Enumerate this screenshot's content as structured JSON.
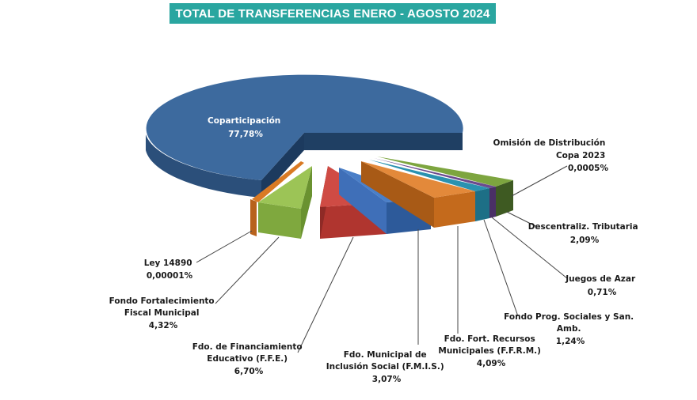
{
  "title": "TOTAL DE TRANSFERENCIAS ENERO - AGOSTO 2024",
  "chart_data": {
    "type": "pie",
    "title": "TOTAL DE TRANSFERENCIAS ENERO - AGOSTO 2024",
    "slices": [
      {
        "id": "coparticipacion",
        "label": [
          "Coparticipación"
        ],
        "value_label": "77,78%",
        "value": 77.78,
        "color": "#3d6a9e"
      },
      {
        "id": "omision",
        "label": [
          "Omisión de Distribución",
          "Copa 2023"
        ],
        "value_label": "0,0005%",
        "value": 0.0005,
        "color": "#6b8f3a"
      },
      {
        "id": "descentraliz",
        "label": [
          "Descentraliz. Tributaria"
        ],
        "value_label": "2,09%",
        "value": 2.09,
        "color": "#7da53f"
      },
      {
        "id": "juegos",
        "label": [
          "Juegos de Azar"
        ],
        "value_label": "0,71%",
        "value": 0.71,
        "color": "#5b3f7a"
      },
      {
        "id": "fondo-prog",
        "label": [
          "Fondo Prog. Sociales y San.",
          "Amb."
        ],
        "value_label": "1,24%",
        "value": 1.24,
        "color": "#2a92b0"
      },
      {
        "id": "ffrm",
        "label": [
          "Fdo. Fort. Recursos",
          "Municipales  (F.F.R.M.)"
        ],
        "value_label": "4,09%",
        "value": 4.09,
        "color": "#d97a24"
      },
      {
        "id": "fmis",
        "label": [
          "Fdo.  Municipal  de",
          "Inclusión  Social  (F.M.I.S.)"
        ],
        "value_label": "3,07%",
        "value": 3.07,
        "color": "#3f6fb8"
      },
      {
        "id": "ffe",
        "label": [
          "Fdo. de Financiamiento",
          "Educativo (F.F.E.)"
        ],
        "value_label": "6,70%",
        "value": 6.7,
        "color": "#c0403a"
      },
      {
        "id": "fortalecimiento",
        "label": [
          "Fondo Fortalecimiento",
          "Fiscal Municipal"
        ],
        "value_label": "4,32%",
        "value": 4.32,
        "color": "#8fb84a"
      },
      {
        "id": "ley14890",
        "label": [
          "Ley 14890"
        ],
        "value_label": "0,00001%",
        "value": 1e-05,
        "color": "#d97a24"
      }
    ]
  }
}
